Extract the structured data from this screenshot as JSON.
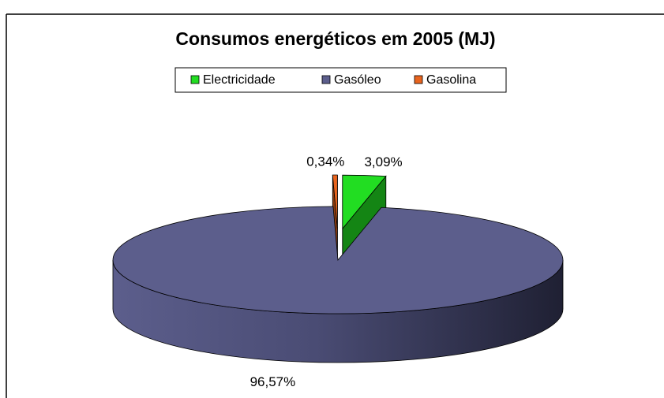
{
  "chart_data": {
    "type": "pie3d",
    "title": "Consumos energéticos em 2005 (MJ)",
    "categories": [
      "Electricidade",
      "Gasóleo",
      "Gasolina"
    ],
    "values": [
      3.09,
      96.57,
      0.34
    ],
    "value_labels": [
      "3,09%",
      "96,57%",
      "0,34%"
    ],
    "colors": [
      "#22dd22",
      "#5c5e8c",
      "#e8641e"
    ],
    "legend": "top"
  }
}
